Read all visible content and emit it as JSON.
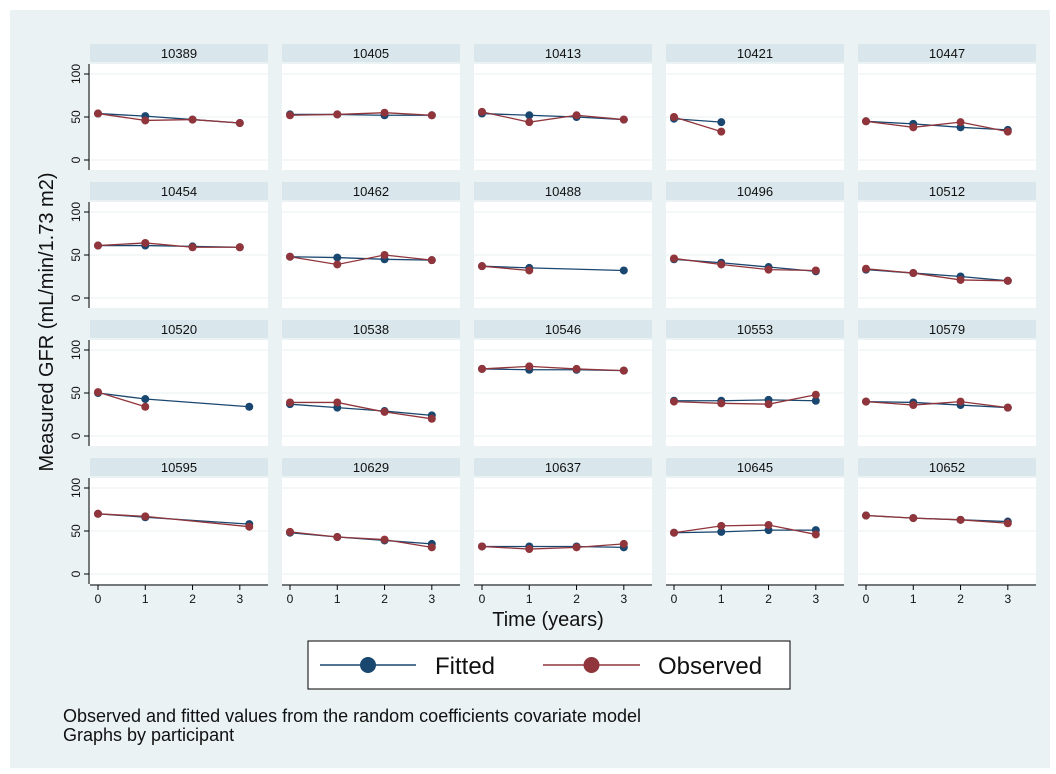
{
  "chart_data": {
    "type": "line",
    "layout": "small-multiples 5 columns x 4 rows",
    "ylabel": "Measured GFR (mL/min/1.73 m2)",
    "xlabel": "Time (years)",
    "xlim": [
      0,
      3.3
    ],
    "ylim": [
      0,
      100
    ],
    "x_ticks": [
      "0",
      "1",
      "2",
      "3"
    ],
    "y_ticks": [
      "0",
      "50",
      "100"
    ],
    "grid": true,
    "legend_position": "bottom",
    "series": [
      {
        "name": "Fitted",
        "color": "#1a476f"
      },
      {
        "name": "Observed",
        "color": "#90353b"
      }
    ],
    "panels": [
      {
        "title": "10389",
        "fitted": [
          [
            0,
            54
          ],
          [
            1,
            51
          ],
          [
            2,
            47
          ],
          [
            3,
            43
          ]
        ],
        "observed": [
          [
            0,
            54
          ],
          [
            1,
            46
          ],
          [
            2,
            47
          ],
          [
            3,
            43
          ]
        ]
      },
      {
        "title": "10405",
        "fitted": [
          [
            0,
            53
          ],
          [
            1,
            53
          ],
          [
            2,
            52
          ],
          [
            3,
            52
          ]
        ],
        "observed": [
          [
            0,
            52
          ],
          [
            1,
            53
          ],
          [
            2,
            55
          ],
          [
            3,
            52
          ]
        ]
      },
      {
        "title": "10413",
        "fitted": [
          [
            0,
            54
          ],
          [
            1,
            52
          ],
          [
            2,
            50
          ],
          [
            3,
            47
          ]
        ],
        "observed": [
          [
            0,
            56
          ],
          [
            1,
            44
          ],
          [
            2,
            52
          ],
          [
            3,
            47
          ]
        ]
      },
      {
        "title": "10421",
        "fitted": [
          [
            0,
            48
          ],
          [
            1,
            44
          ]
        ],
        "observed": [
          [
            0,
            50
          ],
          [
            1,
            33
          ]
        ]
      },
      {
        "title": "10447",
        "fitted": [
          [
            0,
            45
          ],
          [
            1,
            42
          ],
          [
            2,
            38
          ],
          [
            3,
            35
          ]
        ],
        "observed": [
          [
            0,
            45
          ],
          [
            1,
            38
          ],
          [
            2,
            44
          ],
          [
            3,
            33
          ]
        ]
      },
      {
        "title": "10454",
        "fitted": [
          [
            0,
            61
          ],
          [
            1,
            61
          ],
          [
            2,
            60
          ],
          [
            3,
            59
          ]
        ],
        "observed": [
          [
            0,
            61
          ],
          [
            1,
            64
          ],
          [
            2,
            59
          ],
          [
            3,
            59
          ]
        ]
      },
      {
        "title": "10462",
        "fitted": [
          [
            0,
            48
          ],
          [
            1,
            47
          ],
          [
            2,
            45
          ],
          [
            3,
            44
          ]
        ],
        "observed": [
          [
            0,
            48
          ],
          [
            1,
            39
          ],
          [
            2,
            50
          ],
          [
            3,
            44
          ]
        ]
      },
      {
        "title": "10488",
        "fitted": [
          [
            0,
            37
          ],
          [
            1,
            35
          ],
          [
            3,
            32
          ]
        ],
        "observed": [
          [
            0,
            37
          ],
          [
            1,
            32
          ]
        ]
      },
      {
        "title": "10496",
        "fitted": [
          [
            0,
            45
          ],
          [
            1,
            41
          ],
          [
            2,
            36
          ],
          [
            3,
            31
          ]
        ],
        "observed": [
          [
            0,
            46
          ],
          [
            1,
            39
          ],
          [
            2,
            33
          ],
          [
            3,
            32
          ]
        ]
      },
      {
        "title": "10512",
        "fitted": [
          [
            0,
            33
          ],
          [
            1,
            29
          ],
          [
            2,
            25
          ],
          [
            3,
            20
          ]
        ],
        "observed": [
          [
            0,
            34
          ],
          [
            1,
            29
          ],
          [
            2,
            21
          ],
          [
            3,
            20
          ]
        ]
      },
      {
        "title": "10520",
        "fitted": [
          [
            0,
            50
          ],
          [
            1,
            43
          ],
          [
            3.2,
            34
          ]
        ],
        "observed": [
          [
            0,
            51
          ],
          [
            1,
            34
          ]
        ]
      },
      {
        "title": "10538",
        "fitted": [
          [
            0,
            37
          ],
          [
            1,
            33
          ],
          [
            2,
            29
          ],
          [
            3,
            24
          ]
        ],
        "observed": [
          [
            0,
            39
          ],
          [
            1,
            39
          ],
          [
            2,
            28
          ],
          [
            3,
            20
          ]
        ]
      },
      {
        "title": "10546",
        "fitted": [
          [
            0,
            78
          ],
          [
            1,
            77
          ],
          [
            2,
            77
          ],
          [
            3,
            76
          ]
        ],
        "observed": [
          [
            0,
            78
          ],
          [
            1,
            81
          ],
          [
            2,
            78
          ],
          [
            3,
            76
          ]
        ]
      },
      {
        "title": "10553",
        "fitted": [
          [
            0,
            41
          ],
          [
            1,
            41
          ],
          [
            2,
            42
          ],
          [
            3,
            41
          ]
        ],
        "observed": [
          [
            0,
            40
          ],
          [
            1,
            38
          ],
          [
            2,
            37
          ],
          [
            3,
            48
          ]
        ]
      },
      {
        "title": "10579",
        "fitted": [
          [
            0,
            40
          ],
          [
            1,
            39
          ],
          [
            2,
            36
          ],
          [
            3,
            33
          ]
        ],
        "observed": [
          [
            0,
            40
          ],
          [
            1,
            36
          ],
          [
            2,
            40
          ],
          [
            3,
            33
          ]
        ]
      },
      {
        "title": "10595",
        "fitted": [
          [
            0,
            70
          ],
          [
            1,
            66
          ],
          [
            3.2,
            58
          ]
        ],
        "observed": [
          [
            0,
            70
          ],
          [
            1,
            67
          ],
          [
            3.2,
            55
          ]
        ]
      },
      {
        "title": "10629",
        "fitted": [
          [
            0,
            48
          ],
          [
            1,
            43
          ],
          [
            2,
            39
          ],
          [
            3,
            35
          ]
        ],
        "observed": [
          [
            0,
            49
          ],
          [
            1,
            43
          ],
          [
            2,
            40
          ],
          [
            3,
            31
          ]
        ]
      },
      {
        "title": "10637",
        "fitted": [
          [
            0,
            32
          ],
          [
            1,
            32
          ],
          [
            2,
            32
          ],
          [
            3,
            31
          ]
        ],
        "observed": [
          [
            0,
            32
          ],
          [
            1,
            29
          ],
          [
            2,
            31
          ],
          [
            3,
            35
          ]
        ]
      },
      {
        "title": "10645",
        "fitted": [
          [
            0,
            48
          ],
          [
            1,
            49
          ],
          [
            2,
            51
          ],
          [
            3,
            51
          ]
        ],
        "observed": [
          [
            0,
            48
          ],
          [
            1,
            56
          ],
          [
            2,
            57
          ],
          [
            3,
            46
          ]
        ]
      },
      {
        "title": "10652",
        "fitted": [
          [
            0,
            68
          ],
          [
            1,
            65
          ],
          [
            2,
            63
          ],
          [
            3,
            61
          ]
        ],
        "observed": [
          [
            0,
            68
          ],
          [
            1,
            65
          ],
          [
            2,
            63
          ],
          [
            3,
            59
          ]
        ]
      }
    ],
    "notes": [
      "Observed and fitted values from the random coefficients covariate model",
      "Graphs by participant"
    ]
  }
}
